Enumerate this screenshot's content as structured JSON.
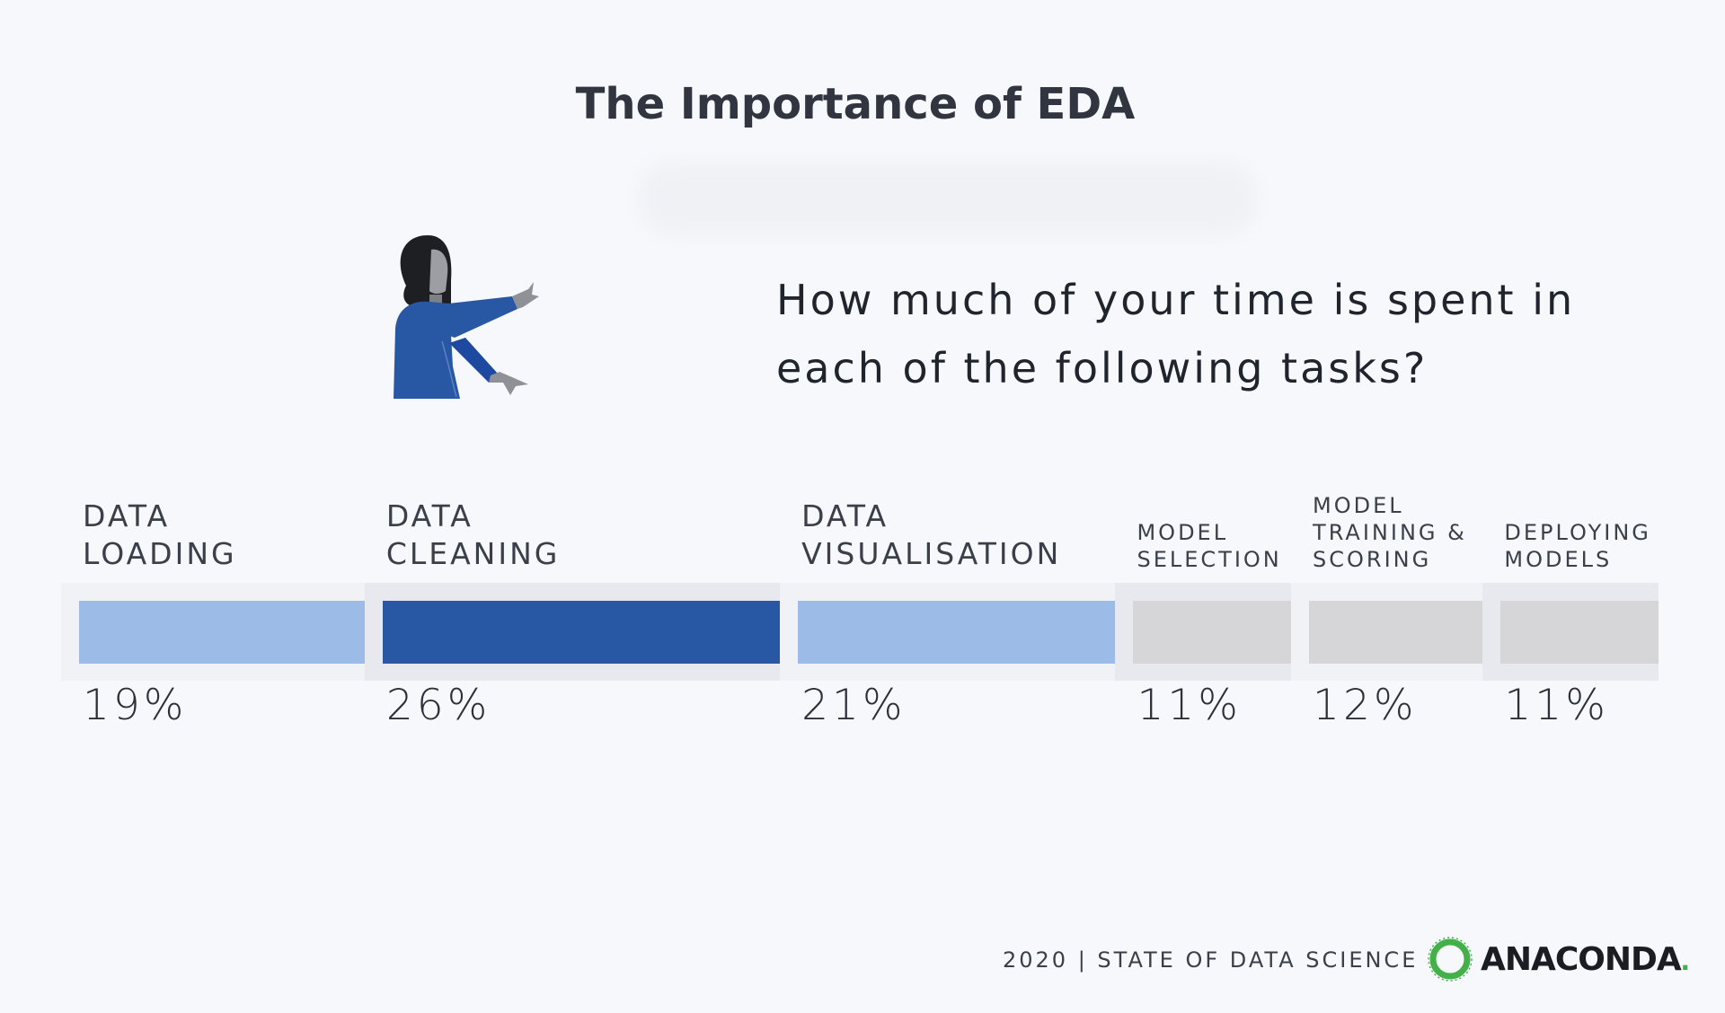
{
  "page": {
    "title": "The Importance of EDA"
  },
  "question": {
    "line1": "How much of your time is spent in",
    "line2": "each of the following tasks?"
  },
  "chart_data": {
    "type": "bar",
    "orientation": "stacked-horizontal-100%",
    "title": "The Importance of EDA",
    "xlabel": "",
    "ylabel": "",
    "grid": false,
    "legend": "none",
    "categories": [
      "DATA\nLOADING",
      "DATA\nCLEANING",
      "DATA\nVISUALISATION",
      "MODEL\nSELECTION",
      "MODEL\nTRAINING &\nSCORING",
      "DEPLOYING\nMODELS"
    ],
    "values": [
      19,
      26,
      21,
      11,
      12,
      11
    ],
    "value_labels": [
      "19%",
      "26%",
      "21%",
      "11%",
      "12%",
      "11%"
    ],
    "colors": [
      "#9dbbe7",
      "#2857a4",
      "#9dbbe7",
      "#d6d6d8",
      "#d6d6d8",
      "#d6d6d8"
    ],
    "background_colors": [
      "#f1f2f6",
      "#e8e9ee",
      "#f1f2f6",
      "#e8e9ee",
      "#f1f2f6",
      "#e8e9ee"
    ],
    "label_sizes": [
      "big",
      "big",
      "big",
      "small",
      "small",
      "small"
    ]
  },
  "footer": {
    "text": "2020 | STATE OF DATA SCIENCE",
    "brand": "ANACONDA",
    "brand_dot": ".",
    "brand_color": "#43b049"
  },
  "icons": [
    "woman-pointing-icon",
    "anaconda-logo-icon"
  ]
}
